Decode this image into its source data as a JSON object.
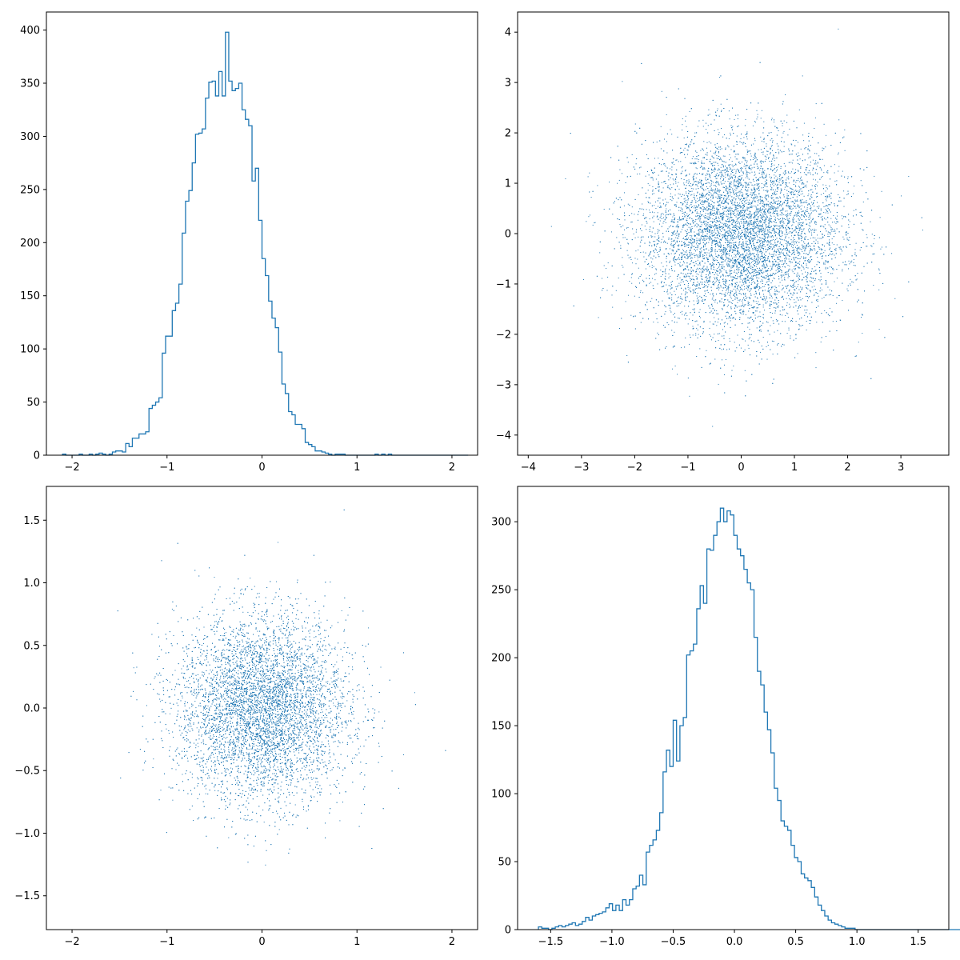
{
  "colors": {
    "series": "#1f77b4",
    "axes": "#000000",
    "background": "#ffffff"
  },
  "chart_data": [
    {
      "type": "histogram",
      "title": "",
      "xlabel": "",
      "ylabel": "",
      "grid": false,
      "xlim": [
        -2.27,
        2.27
      ],
      "ylim": [
        0,
        417
      ],
      "xticks": [
        -2,
        -1,
        0,
        1,
        2
      ],
      "xtick_labels": [
        "−2",
        "−1",
        "0",
        "1",
        "2"
      ],
      "yticks": [
        0,
        50,
        100,
        150,
        200,
        250,
        300,
        350,
        400
      ],
      "ytick_labels": [
        "0",
        "50",
        "100",
        "150",
        "200",
        "250",
        "300",
        "350",
        "400"
      ],
      "bin_start": -2.1,
      "bin_width": 0.035,
      "counts": [
        1,
        0,
        0,
        0,
        0,
        1,
        0,
        0,
        1,
        0,
        1,
        2,
        1,
        0,
        1,
        3,
        4,
        4,
        3,
        11,
        8,
        16,
        16,
        20,
        20,
        22,
        44,
        47,
        50,
        54,
        96,
        112,
        112,
        136,
        143,
        161,
        209,
        239,
        249,
        275,
        302,
        303,
        307,
        336,
        351,
        352,
        338,
        361,
        338,
        398,
        352,
        343,
        345,
        350,
        325,
        316,
        310,
        258,
        270,
        221,
        185,
        169,
        145,
        129,
        120,
        97,
        67,
        58,
        41,
        38,
        29,
        29,
        25,
        12,
        10,
        8,
        4,
        4,
        3,
        2,
        1,
        0,
        1,
        1,
        1,
        0,
        0,
        0,
        0,
        0,
        0,
        0,
        0,
        0,
        1,
        0,
        1,
        0,
        1,
        0,
        0,
        0,
        0,
        0,
        0,
        0,
        0,
        0,
        0,
        0,
        0,
        0,
        0,
        0,
        0,
        0,
        0,
        0,
        0,
        0,
        0,
        0
      ]
    },
    {
      "type": "scatter",
      "title": "",
      "xlabel": "",
      "ylabel": "",
      "grid": false,
      "xlim": [
        -4.2,
        3.9
      ],
      "ylim": [
        -4.4,
        4.4
      ],
      "xticks": [
        -4,
        -3,
        -2,
        -1,
        0,
        1,
        2,
        3
      ],
      "xtick_labels": [
        "−4",
        "−3",
        "−2",
        "−1",
        "0",
        "1",
        "2",
        "3"
      ],
      "yticks": [
        -4,
        -3,
        -2,
        -1,
        0,
        1,
        2,
        3,
        4
      ],
      "ytick_labels": [
        "−4",
        "−3",
        "−2",
        "−1",
        "0",
        "1",
        "2",
        "3",
        "4"
      ],
      "point_count": 10000,
      "distribution": {
        "x_mean": 0.0,
        "x_std": 0.95,
        "y_mean": 0.0,
        "y_std": 0.95
      }
    },
    {
      "type": "scatter",
      "title": "",
      "xlabel": "",
      "ylabel": "",
      "grid": false,
      "xlim": [
        -2.27,
        2.27
      ],
      "ylim": [
        -1.77,
        1.77
      ],
      "xticks": [
        -2,
        -1,
        0,
        1,
        2
      ],
      "xtick_labels": [
        "−2",
        "−1",
        "0",
        "1",
        "2"
      ],
      "yticks": [
        -1.5,
        -1.0,
        -0.5,
        0.0,
        0.5,
        1.0,
        1.5
      ],
      "ytick_labels": [
        "−1.5",
        "−1.0",
        "−0.5",
        "0.0",
        "0.5",
        "1.0",
        "1.5"
      ],
      "point_count": 10000,
      "distribution": {
        "x_mean": 0.0,
        "x_std": 0.45,
        "y_mean": 0.0,
        "y_std": 0.37
      }
    },
    {
      "type": "histogram",
      "title": "",
      "xlabel": "",
      "ylabel": "",
      "grid": false,
      "xlim": [
        -1.77,
        1.75
      ],
      "ylim": [
        0,
        326
      ],
      "xticks": [
        -1.5,
        -1.0,
        -0.5,
        0.0,
        0.5,
        1.0,
        1.5
      ],
      "xtick_labels": [
        "−1.5",
        "−1.0",
        "−0.5",
        "0.0",
        "0.5",
        "1.0",
        "1.5"
      ],
      "yticks": [
        0,
        50,
        100,
        150,
        200,
        250,
        300
      ],
      "ytick_labels": [
        "0",
        "50",
        "100",
        "150",
        "200",
        "250",
        "300"
      ],
      "bin_start": -1.6,
      "bin_width": 0.0275,
      "counts": [
        2,
        1,
        1,
        0,
        1,
        2,
        3,
        2,
        3,
        4,
        5,
        3,
        4,
        6,
        9,
        7,
        10,
        11,
        12,
        13,
        16,
        19,
        14,
        18,
        14,
        22,
        18,
        22,
        30,
        32,
        40,
        33,
        57,
        62,
        66,
        73,
        86,
        116,
        132,
        120,
        154,
        124,
        150,
        156,
        202,
        205,
        210,
        236,
        253,
        240,
        280,
        279,
        290,
        300,
        310,
        300,
        308,
        305,
        290,
        280,
        275,
        265,
        255,
        250,
        215,
        190,
        180,
        160,
        147,
        130,
        104,
        95,
        80,
        76,
        73,
        62,
        53,
        50,
        41,
        38,
        36,
        31,
        24,
        18,
        14,
        10,
        7,
        5,
        4,
        3,
        2,
        1,
        1,
        1,
        0,
        0,
        0,
        0,
        0,
        0,
        0,
        0,
        0,
        0,
        0,
        0,
        0,
        0,
        0,
        0,
        0,
        0,
        0,
        0,
        0,
        0,
        0,
        0,
        0,
        0,
        0,
        0,
        0,
        0,
        0,
        0,
        0,
        0
      ]
    }
  ]
}
